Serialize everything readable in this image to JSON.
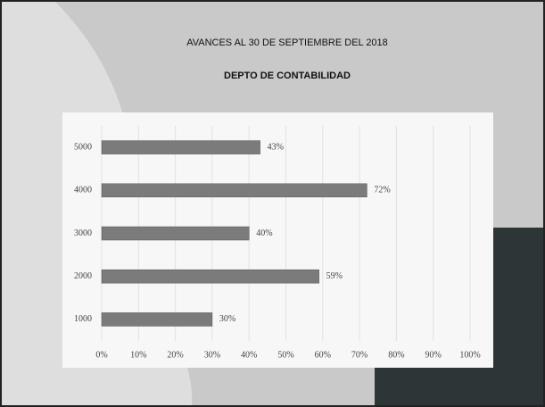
{
  "chart_data": {
    "type": "barh",
    "title": "AVANCES AL 30 DE SEPTIEMBRE DEL 2018",
    "subtitle": "DEPTO DE CONTABILIDAD",
    "categories": [
      "5000",
      "4000",
      "3000",
      "2000",
      "1000"
    ],
    "values": [
      43,
      72,
      40,
      59,
      30
    ],
    "value_labels": [
      "43%",
      "72%",
      "40%",
      "59%",
      "30%"
    ],
    "color": "#7b7b7b",
    "xlim": [
      0,
      100
    ],
    "xticks": [
      {
        "value": 0,
        "label": "0%"
      },
      {
        "value": 10,
        "label": "10%"
      },
      {
        "value": 20,
        "label": "20%"
      },
      {
        "value": 30,
        "label": "30%"
      },
      {
        "value": 40,
        "label": "40%"
      },
      {
        "value": 50,
        "label": "50%"
      },
      {
        "value": 60,
        "label": "60%"
      },
      {
        "value": 70,
        "label": "70%"
      },
      {
        "value": 80,
        "label": "80%"
      },
      {
        "value": 90,
        "label": "90%"
      },
      {
        "value": 100,
        "label": "100%"
      }
    ],
    "grid": true
  }
}
